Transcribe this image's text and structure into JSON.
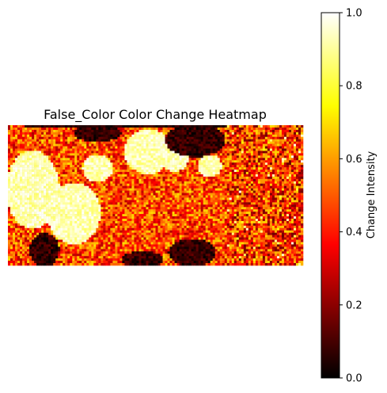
{
  "chart_data": {
    "type": "heatmap",
    "title": "False_Color Color Change Heatmap",
    "colormap": "hot",
    "colors": {
      "black": "#000000",
      "dark_red": "#7a0000",
      "red": "#e60000",
      "orange": "#ff8a00",
      "yellow": "#ffee33",
      "white": "#ffffff"
    },
    "axes_visible": false,
    "image_grid": {
      "rows": 60,
      "cols": 124
    },
    "colorbar": {
      "label": "Change Intensity",
      "range": [
        0.0,
        1.0
      ],
      "ticks": [
        0.0,
        0.2,
        0.4,
        0.6,
        0.8,
        1.0
      ],
      "tick_labels": [
        "0.0",
        "0.2",
        "0.4",
        "0.6",
        "0.8",
        "1.0"
      ],
      "orientation": "vertical",
      "position": "right"
    }
  }
}
